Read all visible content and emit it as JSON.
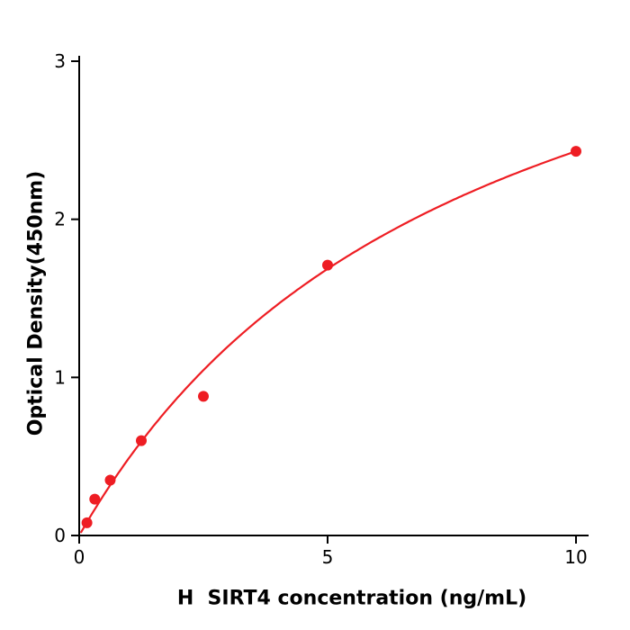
{
  "figure": {
    "background": "#ffffff"
  },
  "chart_data": {
    "type": "scatter",
    "title": "",
    "xlabel": "H  SIRT4 concentration (ng/mL)",
    "ylabel": "Optical Density(450nm)",
    "x": [
      0.156,
      0.3125,
      0.625,
      1.25,
      2.5,
      5,
      10
    ],
    "y": [
      0.08,
      0.23,
      0.35,
      0.6,
      0.88,
      1.71,
      2.43
    ],
    "fit_curve": {
      "type": "michaelis-menten",
      "vmax": 4.35,
      "km": 7.9
    },
    "xlim": [
      0,
      10.3
    ],
    "ylim": [
      0,
      3
    ],
    "x_ticks": [
      0,
      5,
      10
    ],
    "y_ticks": [
      0,
      1,
      2,
      3
    ],
    "grid": false,
    "legend": null,
    "point_color": "#ee1d23",
    "line_color": "#ee1d23",
    "axis_color": "#000000",
    "point_radius": 6
  }
}
